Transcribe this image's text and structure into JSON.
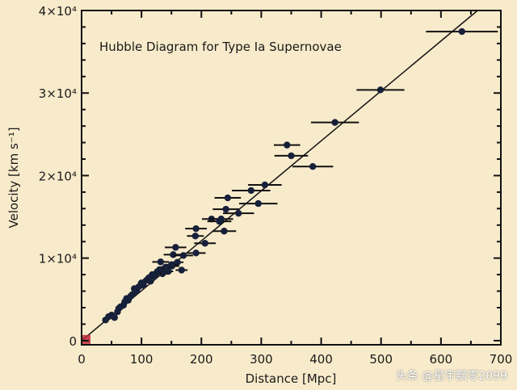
{
  "chart_data": {
    "type": "scatter",
    "title": "Hubble Diagram for Type Ia Supernovae",
    "xlabel": "Distance [Mpc]",
    "ylabel": "Velocity [km s⁻¹]",
    "xlim": [
      0,
      700
    ],
    "ylim": [
      -500,
      40000
    ],
    "x_ticks": [
      0,
      100,
      200,
      300,
      400,
      500,
      600,
      700
    ],
    "x_tick_labels": [
      "0",
      "100",
      "200",
      "300",
      "400",
      "500",
      "600",
      "700"
    ],
    "y_ticks": [
      0,
      10000,
      20000,
      30000,
      40000
    ],
    "y_tick_labels": [
      "0",
      "1×10⁴",
      "2×10⁴",
      "3×10⁴",
      "4×10⁴"
    ],
    "grid": false,
    "fit_line": {
      "slope": 60.5,
      "intercept": 0
    },
    "origin_marker_color": "#c0283a",
    "point_color": "#16203a",
    "points": [
      {
        "d": 635,
        "v": 37450,
        "xerr": 60
      },
      {
        "d": 499,
        "v": 30380,
        "xerr": 40
      },
      {
        "d": 423,
        "v": 26440,
        "xerr": 40
      },
      {
        "d": 343,
        "v": 23700,
        "xerr": 22
      },
      {
        "d": 350,
        "v": 22400,
        "xerr": 28
      },
      {
        "d": 386,
        "v": 21100,
        "xerr": 34
      },
      {
        "d": 306,
        "v": 18870,
        "xerr": 28
      },
      {
        "d": 283,
        "v": 18190,
        "xerr": 32
      },
      {
        "d": 295,
        "v": 16610,
        "xerr": 32
      },
      {
        "d": 244,
        "v": 17300,
        "xerr": 22
      },
      {
        "d": 262,
        "v": 15430,
        "xerr": 26
      },
      {
        "d": 241,
        "v": 15920,
        "xerr": 22
      },
      {
        "d": 217,
        "v": 14740,
        "xerr": 16
      },
      {
        "d": 233,
        "v": 14740,
        "xerr": 20
      },
      {
        "d": 230,
        "v": 14450,
        "xerr": 20
      },
      {
        "d": 238,
        "v": 13270,
        "xerr": 20
      },
      {
        "d": 191,
        "v": 13570,
        "xerr": 18
      },
      {
        "d": 190,
        "v": 12680,
        "xerr": 14
      },
      {
        "d": 206,
        "v": 11800,
        "xerr": 18
      },
      {
        "d": 157,
        "v": 11300,
        "xerr": 18
      },
      {
        "d": 153,
        "v": 10420,
        "xerr": 16
      },
      {
        "d": 170,
        "v": 10320,
        "xerr": 16
      },
      {
        "d": 191,
        "v": 10620,
        "xerr": 16
      },
      {
        "d": 132,
        "v": 9540,
        "xerr": 14
      },
      {
        "d": 151,
        "v": 9040,
        "xerr": 12
      },
      {
        "d": 167,
        "v": 8550,
        "xerr": 10
      },
      {
        "d": 160,
        "v": 9500,
        "xerr": 10
      },
      {
        "d": 150,
        "v": 9200,
        "xerr": 10
      },
      {
        "d": 145,
        "v": 8400,
        "xerr": 8
      },
      {
        "d": 140,
        "v": 8900,
        "xerr": 8
      },
      {
        "d": 135,
        "v": 8100,
        "xerr": 8
      },
      {
        "d": 130,
        "v": 8600,
        "xerr": 8
      },
      {
        "d": 125,
        "v": 8200,
        "xerr": 8
      },
      {
        "d": 122,
        "v": 7800,
        "xerr": 6
      },
      {
        "d": 118,
        "v": 8000,
        "xerr": 6
      },
      {
        "d": 115,
        "v": 7200,
        "xerr": 6
      },
      {
        "d": 112,
        "v": 7600,
        "xerr": 6
      },
      {
        "d": 108,
        "v": 7300,
        "xerr": 6
      },
      {
        "d": 103,
        "v": 6700,
        "xerr": 6
      },
      {
        "d": 100,
        "v": 7000,
        "xerr": 6
      },
      {
        "d": 95,
        "v": 6500,
        "xerr": 5
      },
      {
        "d": 92,
        "v": 6000,
        "xerr": 5
      },
      {
        "d": 88,
        "v": 6300,
        "xerr": 5
      },
      {
        "d": 85,
        "v": 5600,
        "xerr": 5
      },
      {
        "d": 82,
        "v": 5400,
        "xerr": 5
      },
      {
        "d": 78,
        "v": 4900,
        "xerr": 4
      },
      {
        "d": 75,
        "v": 5100,
        "xerr": 4
      },
      {
        "d": 72,
        "v": 4700,
        "xerr": 4
      },
      {
        "d": 70,
        "v": 4300,
        "xerr": 4
      },
      {
        "d": 65,
        "v": 4100,
        "xerr": 4
      },
      {
        "d": 62,
        "v": 3900,
        "xerr": 4
      },
      {
        "d": 60,
        "v": 3500,
        "xerr": 4
      },
      {
        "d": 55,
        "v": 2800,
        "xerr": 3
      },
      {
        "d": 50,
        "v": 3100,
        "xerr": 3
      },
      {
        "d": 45,
        "v": 2900,
        "xerr": 3
      },
      {
        "d": 40,
        "v": 2500,
        "xerr": 3
      }
    ]
  },
  "watermark": "头条 @星宇飘零2099"
}
